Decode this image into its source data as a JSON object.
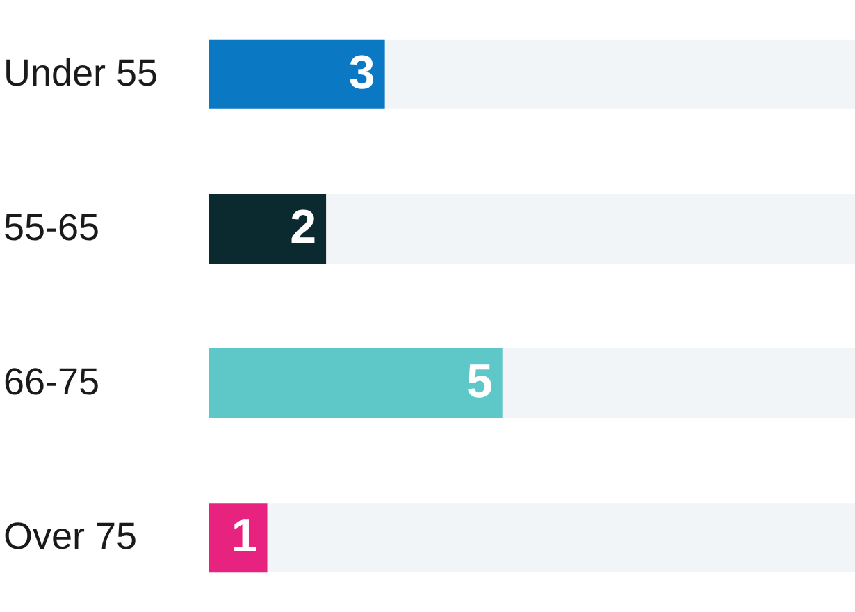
{
  "chart_data": {
    "type": "bar",
    "orientation": "horizontal",
    "categories": [
      "Under 55",
      "55-65",
      "66-75",
      "Over 75"
    ],
    "values": [
      3,
      2,
      5,
      1
    ],
    "colors": [
      "#0b78c4",
      "#0b2a2f",
      "#5ec8c8",
      "#e8237f"
    ],
    "xlim": [
      0,
      11
    ],
    "data_labels": true,
    "tick_labels": "y"
  }
}
